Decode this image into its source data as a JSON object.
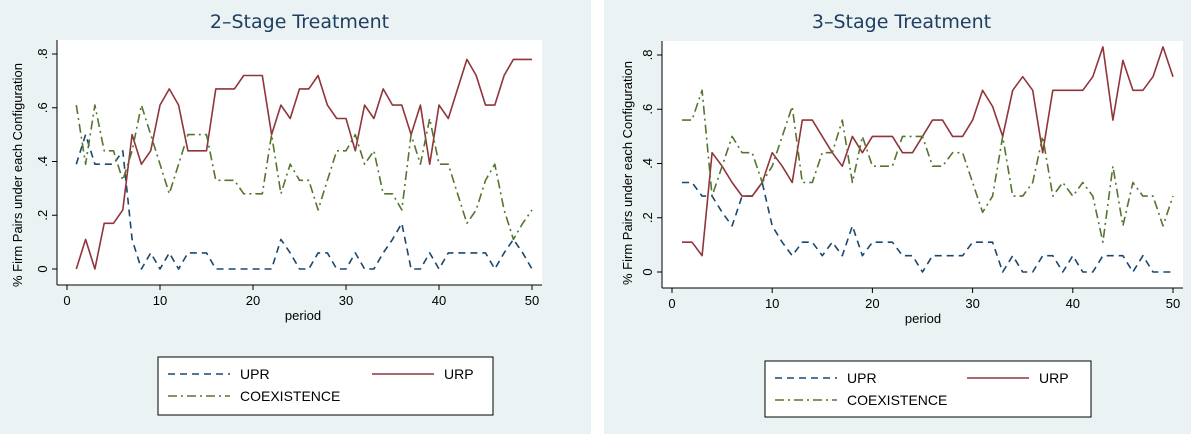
{
  "colors": {
    "outer_bg": "#eaf2f3",
    "plot_bg": "#ffffff",
    "title": "#1e3f62",
    "UPR": "#1a476f",
    "URP": "#90353b",
    "COEXISTENCE": "#55752f"
  },
  "chart_data": [
    {
      "type": "line",
      "title": "2–Stage Treatment",
      "xlabel": "period",
      "ylabel": "% Firm Pairs under each Configuration",
      "xlim": [
        0,
        50
      ],
      "ylim": [
        0,
        0.8
      ],
      "x_ticks": [
        0,
        10,
        20,
        30,
        40,
        50
      ],
      "x_tick_labels": [
        "0",
        "10",
        "20",
        "30",
        "40",
        "50"
      ],
      "y_ticks": [
        0,
        0.2,
        0.4,
        0.6,
        0.8
      ],
      "y_tick_labels": [
        "0",
        ".2",
        ".4",
        ".6",
        ".8"
      ],
      "legend_position": "bottom",
      "x": [
        1,
        2,
        3,
        4,
        5,
        6,
        7,
        8,
        9,
        10,
        11,
        12,
        13,
        14,
        15,
        16,
        17,
        18,
        19,
        20,
        21,
        22,
        23,
        24,
        25,
        26,
        27,
        28,
        29,
        30,
        31,
        32,
        33,
        34,
        35,
        36,
        37,
        38,
        39,
        40,
        41,
        42,
        43,
        44,
        45,
        46,
        47,
        48,
        49,
        50
      ],
      "series": [
        {
          "name": "UPR",
          "style": "dash",
          "values": [
            0.39,
            0.5,
            0.39,
            0.39,
            0.39,
            0.44,
            0.11,
            0,
            0.06,
            0,
            0.06,
            0,
            0.06,
            0.06,
            0.06,
            0,
            0,
            0,
            0,
            0,
            0,
            0,
            0.11,
            0.06,
            0,
            0,
            0.06,
            0.06,
            0,
            0,
            0.06,
            0,
            0,
            0.06,
            0.11,
            0.17,
            0,
            0,
            0.06,
            0,
            0.06,
            0.06,
            0.06,
            0.06,
            0.06,
            0,
            0.06,
            0.11,
            0.06,
            0
          ]
        },
        {
          "name": "URP",
          "style": "solid",
          "values": [
            0,
            0.11,
            0,
            0.17,
            0.17,
            0.22,
            0.5,
            0.39,
            0.44,
            0.61,
            0.67,
            0.61,
            0.44,
            0.44,
            0.44,
            0.67,
            0.67,
            0.67,
            0.72,
            0.72,
            0.72,
            0.5,
            0.61,
            0.56,
            0.67,
            0.67,
            0.72,
            0.61,
            0.56,
            0.56,
            0.44,
            0.61,
            0.56,
            0.67,
            0.61,
            0.61,
            0.5,
            0.61,
            0.39,
            0.61,
            0.56,
            0.67,
            0.78,
            0.72,
            0.61,
            0.61,
            0.72,
            0.78,
            0.78,
            0.78
          ]
        },
        {
          "name": "COEXISTENCE",
          "style": "dashdot",
          "values": [
            0.61,
            0.39,
            0.61,
            0.44,
            0.44,
            0.33,
            0.44,
            0.61,
            0.5,
            0.39,
            0.28,
            0.39,
            0.5,
            0.5,
            0.5,
            0.33,
            0.33,
            0.33,
            0.28,
            0.28,
            0.28,
            0.5,
            0.28,
            0.39,
            0.33,
            0.33,
            0.22,
            0.33,
            0.44,
            0.44,
            0.5,
            0.39,
            0.44,
            0.28,
            0.28,
            0.22,
            0.5,
            0.39,
            0.56,
            0.39,
            0.39,
            0.28,
            0.17,
            0.22,
            0.33,
            0.39,
            0.22,
            0.11,
            0.17,
            0.22
          ]
        }
      ]
    },
    {
      "type": "line",
      "title": "3–Stage Treatment",
      "xlabel": "period",
      "ylabel": "% Firm Pairs under each Configuration",
      "xlim": [
        0,
        50
      ],
      "ylim": [
        0,
        0.8
      ],
      "x_ticks": [
        0,
        10,
        20,
        30,
        40,
        50
      ],
      "x_tick_labels": [
        "0",
        "10",
        "20",
        "30",
        "40",
        "50"
      ],
      "y_ticks": [
        0,
        0.2,
        0.4,
        0.6,
        0.8
      ],
      "y_tick_labels": [
        "0",
        ".2",
        ".4",
        ".6",
        ".8"
      ],
      "legend_position": "bottom",
      "x": [
        1,
        2,
        3,
        4,
        5,
        6,
        7,
        8,
        9,
        10,
        11,
        12,
        13,
        14,
        15,
        16,
        17,
        18,
        19,
        20,
        21,
        22,
        23,
        24,
        25,
        26,
        27,
        28,
        29,
        30,
        31,
        32,
        33,
        34,
        35,
        36,
        37,
        38,
        39,
        40,
        41,
        42,
        43,
        44,
        45,
        46,
        47,
        48,
        49,
        50
      ],
      "series": [
        {
          "name": "UPR",
          "style": "dash",
          "values": [
            0.33,
            0.33,
            0.28,
            0.28,
            0.22,
            0.17,
            0.28,
            0.28,
            0.33,
            0.17,
            0.11,
            0.06,
            0.11,
            0.11,
            0.06,
            0.11,
            0.06,
            0.17,
            0.06,
            0.11,
            0.11,
            0.11,
            0.06,
            0.06,
            0,
            0.06,
            0.06,
            0.06,
            0.06,
            0.11,
            0.11,
            0.11,
            0,
            0.06,
            0,
            0,
            0.06,
            0.06,
            0,
            0.06,
            0,
            0,
            0.06,
            0.06,
            0.06,
            0,
            0.06,
            0,
            0,
            0
          ]
        },
        {
          "name": "URP",
          "style": "solid",
          "values": [
            0.11,
            0.11,
            0.06,
            0.44,
            0.39,
            0.33,
            0.28,
            0.28,
            0.33,
            0.44,
            0.39,
            0.33,
            0.56,
            0.56,
            0.5,
            0.44,
            0.39,
            0.5,
            0.44,
            0.5,
            0.5,
            0.5,
            0.44,
            0.44,
            0.5,
            0.56,
            0.56,
            0.5,
            0.5,
            0.56,
            0.67,
            0.61,
            0.5,
            0.67,
            0.72,
            0.67,
            0.44,
            0.67,
            0.67,
            0.67,
            0.67,
            0.72,
            0.83,
            0.56,
            0.78,
            0.67,
            0.67,
            0.72,
            0.83,
            0.72
          ]
        },
        {
          "name": "COEXISTENCE",
          "style": "dashdot",
          "values": [
            0.56,
            0.56,
            0.67,
            0.28,
            0.39,
            0.5,
            0.44,
            0.44,
            0.33,
            0.39,
            0.5,
            0.61,
            0.33,
            0.33,
            0.44,
            0.44,
            0.56,
            0.33,
            0.5,
            0.39,
            0.39,
            0.39,
            0.5,
            0.5,
            0.5,
            0.39,
            0.39,
            0.44,
            0.44,
            0.33,
            0.22,
            0.28,
            0.5,
            0.28,
            0.28,
            0.33,
            0.5,
            0.28,
            0.33,
            0.28,
            0.33,
            0.28,
            0.11,
            0.39,
            0.17,
            0.33,
            0.28,
            0.28,
            0.17,
            0.28
          ]
        }
      ]
    }
  ]
}
